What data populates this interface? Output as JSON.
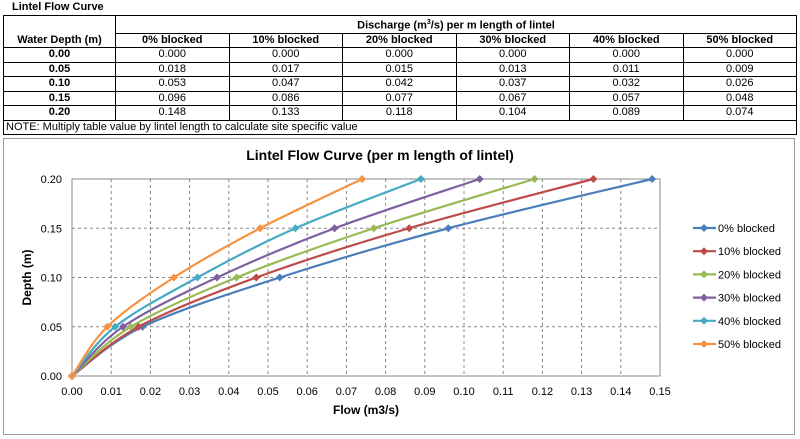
{
  "sheet_title": "Lintel Flow Curve",
  "table": {
    "group_header_pre": "Discharge (m",
    "group_header_sup": "3",
    "group_header_post": "/s) per m length of lintel",
    "first_header": "Water Depth (m)",
    "columns": [
      "0% blocked",
      "10% blocked",
      "20% blocked",
      "30% blocked",
      "40% blocked",
      "50% blocked"
    ],
    "rows": [
      {
        "depth": "0.00",
        "values": [
          "0.000",
          "0.000",
          "0.000",
          "0.000",
          "0.000",
          "0.000"
        ]
      },
      {
        "depth": "0.05",
        "values": [
          "0.018",
          "0.017",
          "0.015",
          "0.013",
          "0.011",
          "0.009"
        ]
      },
      {
        "depth": "0.10",
        "values": [
          "0.053",
          "0.047",
          "0.042",
          "0.037",
          "0.032",
          "0.026"
        ]
      },
      {
        "depth": "0.15",
        "values": [
          "0.096",
          "0.086",
          "0.077",
          "0.067",
          "0.057",
          "0.048"
        ]
      },
      {
        "depth": "0.20",
        "values": [
          "0.148",
          "0.133",
          "0.118",
          "0.104",
          "0.089",
          "0.074"
        ]
      }
    ],
    "note": "NOTE: Multiply table value by lintel length to calculate site specific value"
  },
  "chart_data": {
    "type": "line",
    "title": "Lintel Flow Curve (per m length of lintel)",
    "xlabel": "Flow (m3/s)",
    "ylabel": "Depth (m)",
    "xlim": [
      0,
      0.15
    ],
    "ylim": [
      0,
      0.2
    ],
    "xticks": [
      "0.00",
      "0.01",
      "0.02",
      "0.03",
      "0.04",
      "0.05",
      "0.06",
      "0.07",
      "0.08",
      "0.09",
      "0.10",
      "0.11",
      "0.12",
      "0.13",
      "0.14",
      "0.15"
    ],
    "yticks": [
      "0.00",
      "0.05",
      "0.10",
      "0.15",
      "0.20"
    ],
    "grid": true,
    "legend_position": "right",
    "y": [
      0,
      0.05,
      0.1,
      0.15,
      0.2
    ],
    "series": [
      {
        "name": "0% blocked",
        "color": "#4a7ebb",
        "x": [
          0,
          0.018,
          0.053,
          0.096,
          0.148
        ]
      },
      {
        "name": "10% blocked",
        "color": "#be4b48",
        "x": [
          0,
          0.017,
          0.047,
          0.086,
          0.133
        ]
      },
      {
        "name": "20% blocked",
        "color": "#98b954",
        "x": [
          0,
          0.015,
          0.042,
          0.077,
          0.118
        ]
      },
      {
        "name": "30% blocked",
        "color": "#7d60a0",
        "x": [
          0,
          0.013,
          0.037,
          0.067,
          0.104
        ]
      },
      {
        "name": "40% blocked",
        "color": "#46aac5",
        "x": [
          0,
          0.011,
          0.032,
          0.057,
          0.089
        ]
      },
      {
        "name": "50% blocked",
        "color": "#f69240",
        "x": [
          0,
          0.009,
          0.026,
          0.048,
          0.074
        ]
      }
    ]
  }
}
